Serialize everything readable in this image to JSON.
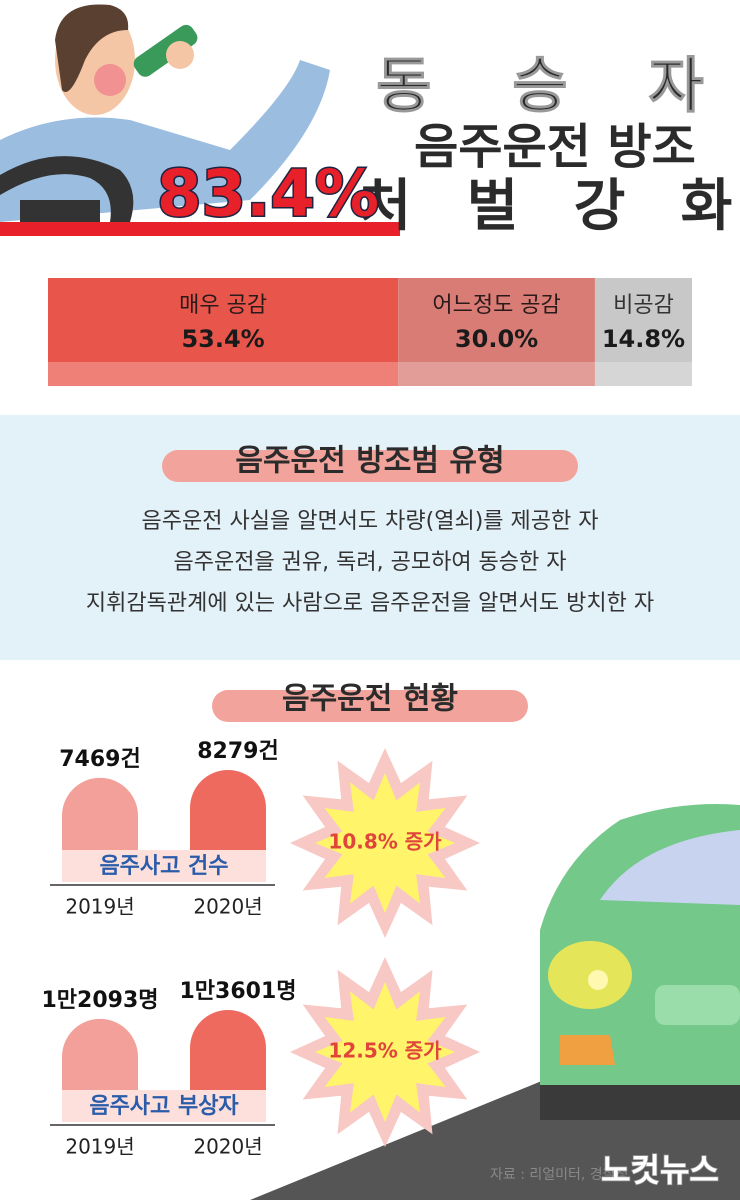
{
  "header": {
    "title_lines": [
      "동 승 자",
      "음주운전 방조",
      "처 벌 강 화"
    ],
    "highlight": "83.4%"
  },
  "survey": {
    "type": "bar",
    "categories": [
      "매우 공감",
      "어느정도 공감",
      "비공감"
    ],
    "values": [
      53.4,
      30.0,
      14.8
    ],
    "value_labels": [
      "53.4%",
      "30.0%",
      "14.8%"
    ],
    "colors": [
      "#e8554a",
      "#d97c75",
      "#c8c8c8"
    ]
  },
  "types": {
    "title": "음주운전 방조범 유형",
    "items": [
      "음주운전 사실을 알면서도 차량(열쇠)를 제공한 자",
      "음주운전을 권유, 독려, 공모하여 동승한 자",
      "지휘감독관계에 있는 사람으로 음주운전을 알면서도 방치한 자"
    ]
  },
  "status": {
    "title": "음주운전 현황",
    "charts": [
      {
        "type": "bar",
        "label": "음주사고 건수",
        "categories": [
          "2019년",
          "2020년"
        ],
        "values": [
          7469,
          8279
        ],
        "value_labels": [
          "7469건",
          "8279건"
        ],
        "colors": [
          "#f4a09a",
          "#ee6a5e"
        ],
        "change": "10.8% 증가"
      },
      {
        "type": "bar",
        "label": "음주사고 부상자",
        "categories": [
          "2019년",
          "2020년"
        ],
        "values": [
          12093,
          13601
        ],
        "value_labels": [
          "1만2093명",
          "1만3601명"
        ],
        "colors": [
          "#f4a09a",
          "#ee6a5e"
        ],
        "change": "12.5% 증가"
      }
    ]
  },
  "source": "자료 : 리얼미터, 경찰청",
  "logo": "노컷뉴스"
}
